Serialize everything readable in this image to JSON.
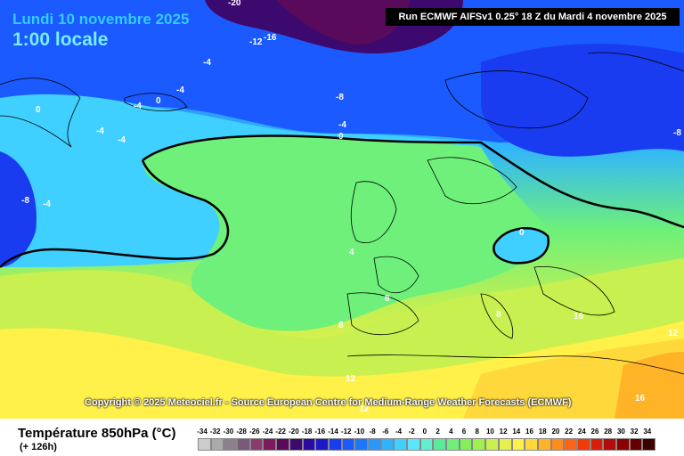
{
  "header": {
    "date_line": "Lundi 10 novembre 2025",
    "time_line": "1:00 locale",
    "run_info": "Run ECMWF AIFSv1 0.25° 18 Z du Mardi 4 novembre 2025"
  },
  "copyright": "Copyright © 2025 Meteociel.fr - Source European Centre for Medium-Range Weather Forecasts (ECMWF)",
  "legend": {
    "variable_title": "Température 850hPa (°C)",
    "lead_time": "(+ 126h)",
    "scale_values": [
      "-34",
      "-32",
      "-30",
      "-28",
      "-26",
      "-24",
      "-22",
      "-20",
      "-18",
      "-16",
      "-14",
      "-12",
      "-10",
      "-8",
      "-6",
      "-4",
      "-2",
      "0",
      "2",
      "4",
      "6",
      "8",
      "10",
      "12",
      "14",
      "16",
      "18",
      "20",
      "22",
      "24",
      "26",
      "28",
      "30",
      "32",
      "34"
    ],
    "scale_colors": [
      "#cccccc",
      "#aaaaaa",
      "#8a7f8a",
      "#7a5a7a",
      "#8b3b6b",
      "#7d1a5e",
      "#5a0a5a",
      "#3c0a6e",
      "#2a0aa0",
      "#1a1ac8",
      "#1a3cf0",
      "#1a5aff",
      "#1a78ff",
      "#2a96ff",
      "#30b4ff",
      "#40d0ff",
      "#5ae6ff",
      "#60f0d0",
      "#5aeb9a",
      "#6ef07a",
      "#82f05a",
      "#a0f050",
      "#c8f050",
      "#e6f050",
      "#fff04a",
      "#ffd83c",
      "#ffb428",
      "#ff8c1e",
      "#ff6414",
      "#f03c0a",
      "#d81e0a",
      "#b40a0a",
      "#8c0000",
      "#640000",
      "#3c0000"
    ]
  },
  "map_labels": [
    {
      "text": "-20",
      "tone": "white"
    },
    {
      "text": "-16",
      "tone": "white"
    },
    {
      "text": "-12",
      "tone": "white"
    },
    {
      "text": "-8",
      "tone": "white"
    },
    {
      "text": "-4",
      "tone": "white"
    },
    {
      "text": "-4",
      "tone": "white"
    },
    {
      "text": "0",
      "tone": "white"
    },
    {
      "text": "-4",
      "tone": "white"
    },
    {
      "text": "-4",
      "tone": "white"
    },
    {
      "text": "0",
      "tone": "white"
    },
    {
      "text": "-4",
      "tone": "white"
    },
    {
      "text": "-4",
      "tone": "white"
    },
    {
      "text": "0",
      "tone": "white"
    },
    {
      "text": "-8",
      "tone": "white"
    },
    {
      "text": "-4",
      "tone": "white"
    },
    {
      "text": "-8",
      "tone": "white"
    },
    {
      "text": "0",
      "tone": "white"
    },
    {
      "text": "4",
      "tone": "white"
    },
    {
      "text": "8",
      "tone": "white"
    },
    {
      "text": "8",
      "tone": "white"
    },
    {
      "text": "8",
      "tone": "white"
    },
    {
      "text": "12",
      "tone": "white"
    },
    {
      "text": "12",
      "tone": "white"
    },
    {
      "text": "16",
      "tone": "white"
    },
    {
      "text": "12",
      "tone": "white"
    },
    {
      "text": "16",
      "tone": "white"
    }
  ]
}
